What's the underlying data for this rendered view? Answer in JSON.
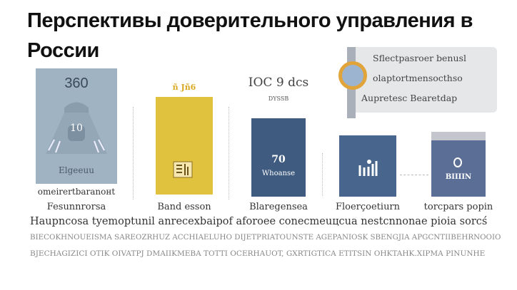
{
  "title": "Перспективы доверительного управления в России",
  "cards": [
    {
      "value": "360",
      "icon_label": "10",
      "caption": "Elgeeuu",
      "label1": "omeirertbaranoнt",
      "label2": "Fesunnrorsa"
    },
    {
      "value": "ñ Jñ6",
      "label": "Band esson"
    },
    {
      "value": "IOC 9 dcs",
      "sub": "DYSSB",
      "inner_value": "70",
      "inner_caption": "Whoanse",
      "label": "Blaregensea"
    },
    {
      "label": "Floerçoetiurn"
    },
    {
      "inner_caption": "BIIIIN",
      "label": "torcpars popin"
    }
  ],
  "callout": {
    "lines": [
      "Sflectpasroer benusl",
      "olaptortmensocthso",
      "Aupretesc Bearetdap"
    ]
  },
  "paragraph": [
    "Haupncosa tyemoptunil anrecexbaipof aforoee conecmeuцcua nestcnnonae pioia sorcś",
    "BIECOKHNOUEISMA SAREOZRHUZ ACCHIAELUHO DIJETPRIATOUNSTE AGEPANIOSK SBENGJIA APGCNTIIBEHRNOOIO",
    "BJECHAGIZICI OTIK OIVATPJ DMAIIKMEBA TOTTI OCERHAUOT, GXRTIGTICA ETITSIN OHKTAHK.XIPMA PINUNHE"
  ],
  "colors": {
    "card1": "#9fb3c2",
    "yellow": "#e1c23e",
    "blue": "#3f5b80",
    "accent": "#e0a43a"
  }
}
